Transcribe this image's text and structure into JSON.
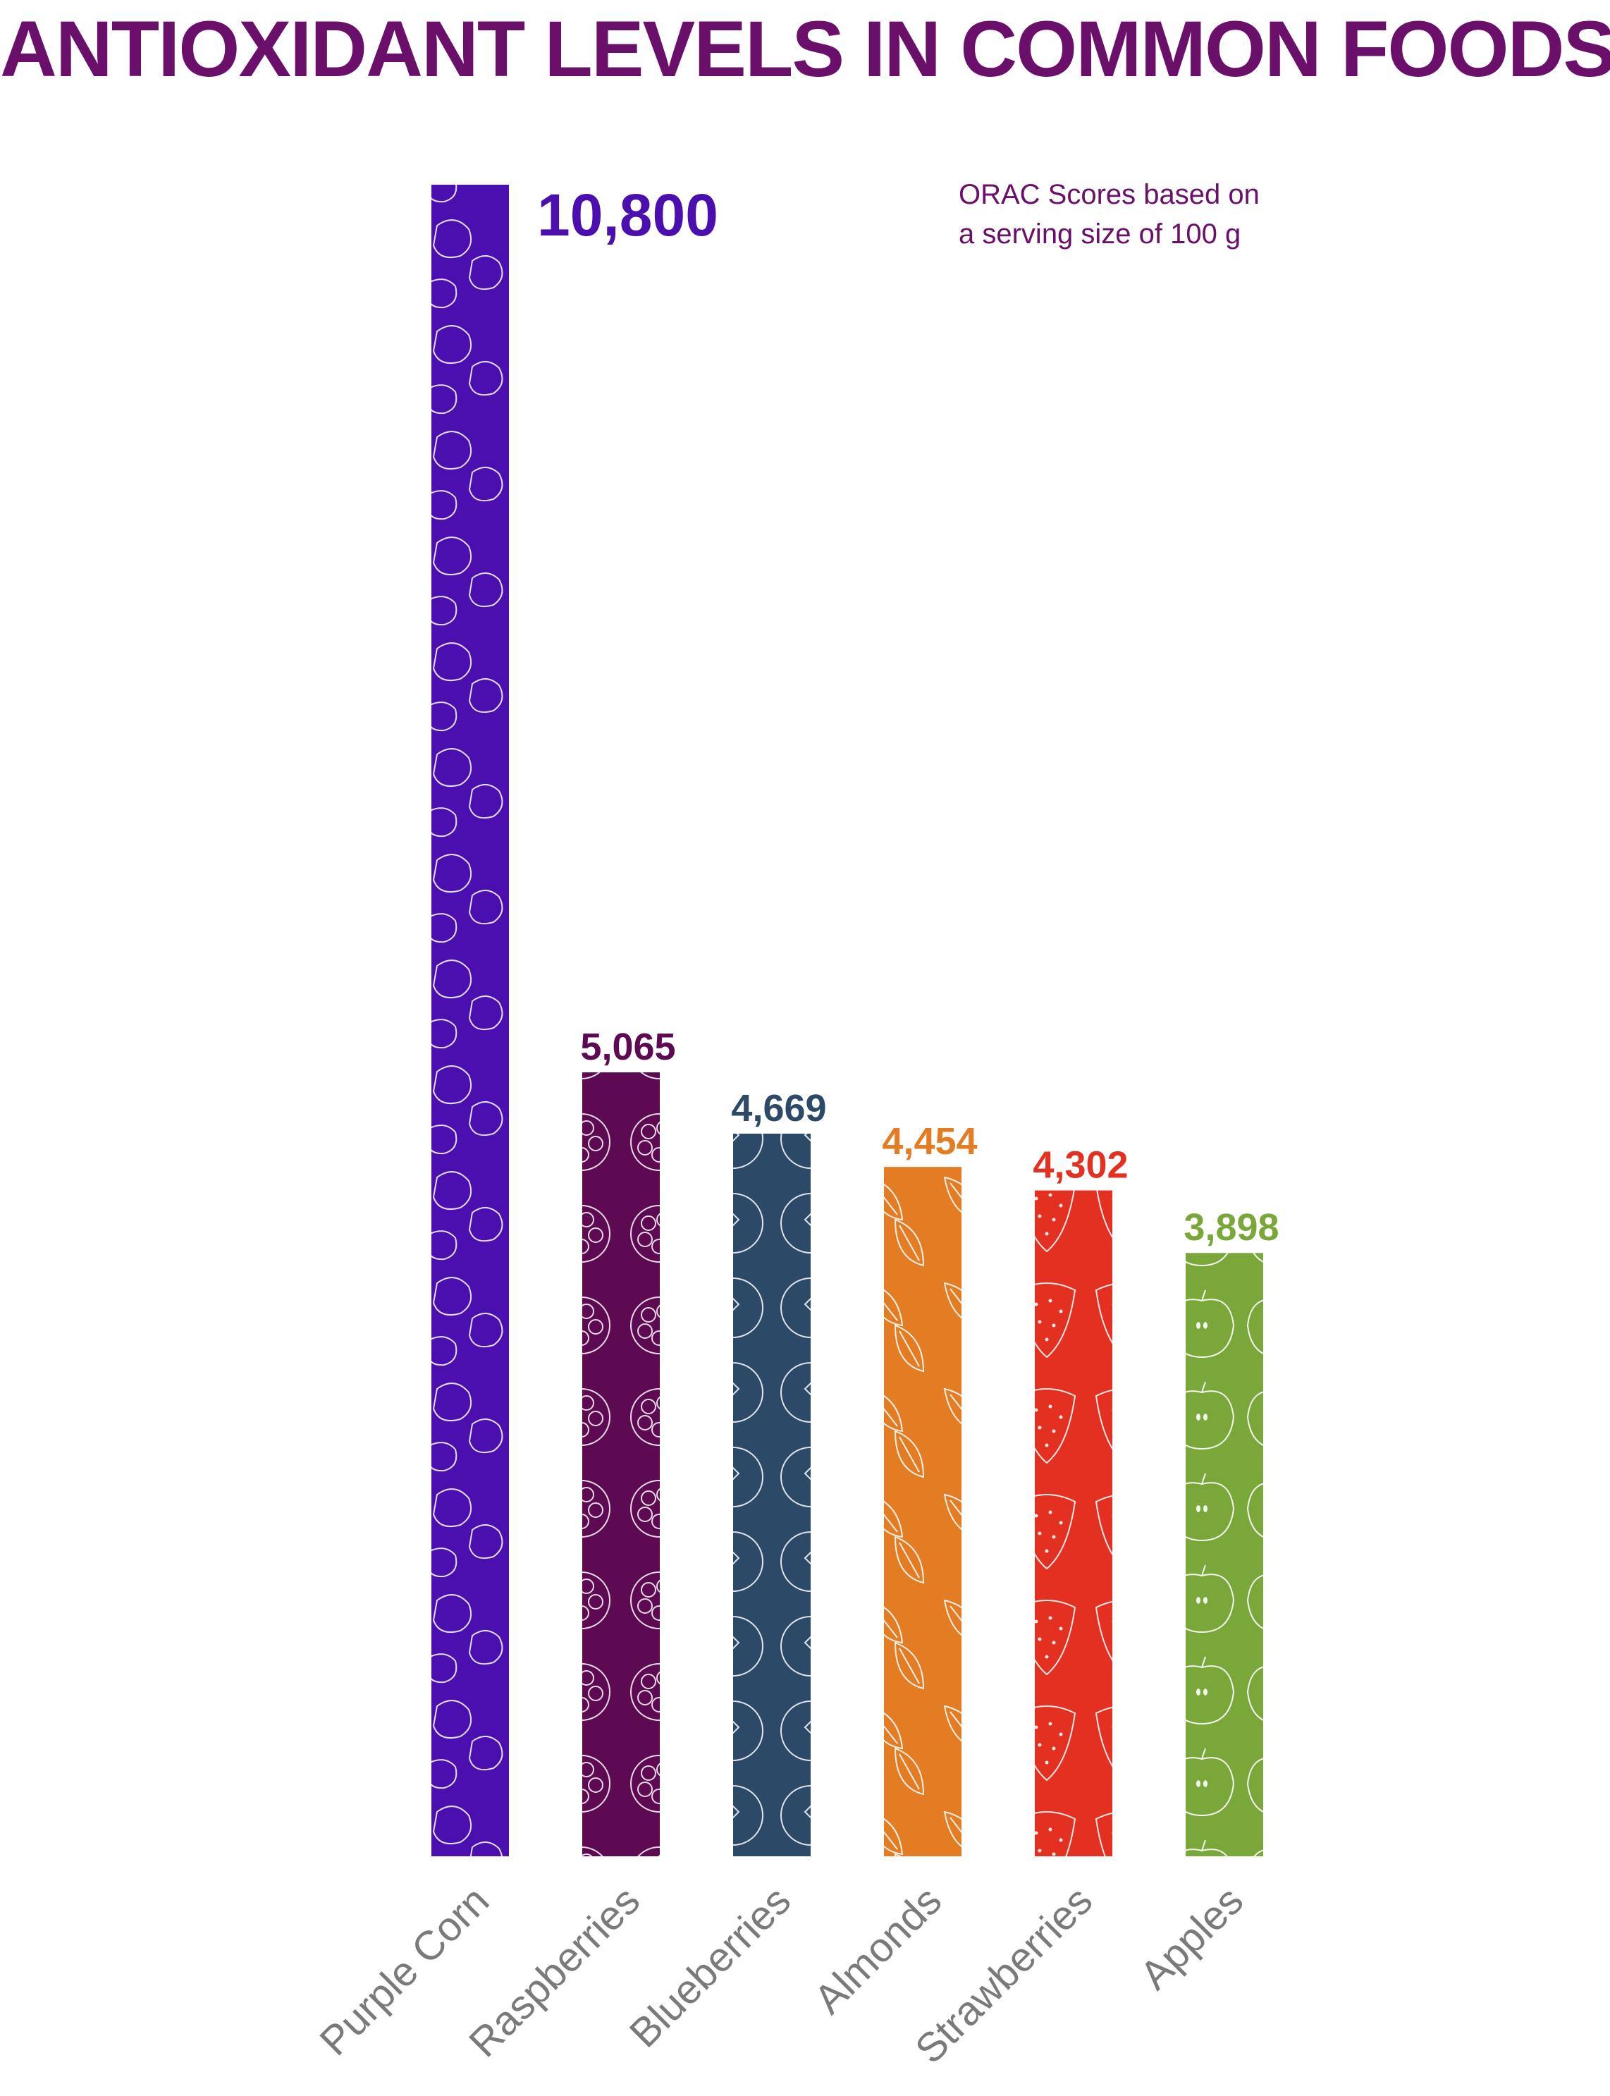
{
  "title": "ANTIOXIDANT LEVELS IN COMMON FOODS",
  "note": {
    "line1": "ORAC Scores based on",
    "line2": "a serving size of 100 g"
  },
  "chart_data": {
    "type": "bar",
    "title": "ANTIOXIDANT LEVELS IN COMMON FOODS",
    "subtitle": "ORAC Scores based on a serving size of 100 g",
    "categories": [
      "Purple Corn",
      "Raspberries",
      "Blueberries",
      "Almonds",
      "Strawberries",
      "Apples"
    ],
    "values": [
      10800,
      5065,
      4669,
      4454,
      4302,
      3898
    ],
    "value_labels": [
      "10,800",
      "5,065",
      "4,669",
      "4,454",
      "4,302",
      "3,898"
    ],
    "colors": [
      "#4a0fae",
      "#5e0a52",
      "#2c4a68",
      "#e37c22",
      "#e43020",
      "#7aa73a"
    ],
    "label_colors": [
      "#4a0fae",
      "#5e0a52",
      "#2c4a68",
      "#e37c22",
      "#e43020",
      "#7aa73a"
    ],
    "ylim": [
      0,
      10800
    ],
    "xlabel": "",
    "ylabel": "",
    "grid": false,
    "legend": "none"
  }
}
